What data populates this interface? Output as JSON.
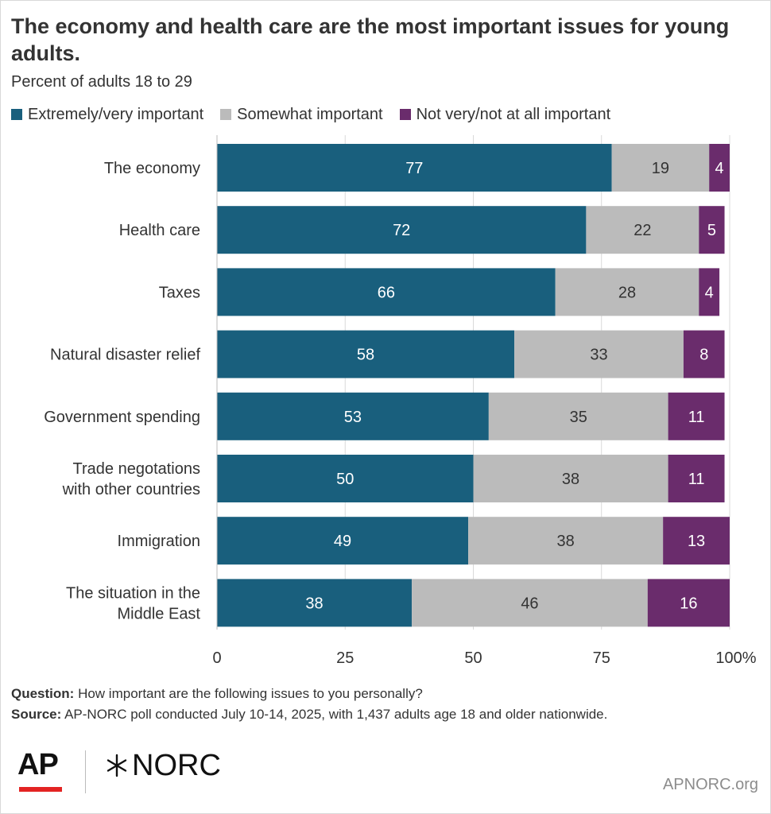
{
  "title": "The economy and health care are the most important issues for young adults.",
  "subtitle": "Percent of adults 18 to 29",
  "colors": {
    "extremely": "#195f7d",
    "somewhat": "#bbbbbb",
    "not": "#6a2c6c"
  },
  "legend": [
    {
      "label": "Extremely/very important",
      "color": "#195f7d"
    },
    {
      "label": "Somewhat important",
      "color": "#bbbbbb"
    },
    {
      "label": "Not very/not at all important",
      "color": "#6a2c6c"
    }
  ],
  "chart_data": {
    "type": "bar",
    "orientation": "horizontal",
    "stacked": true,
    "categories": [
      "The economy",
      "Health care",
      "Taxes",
      "Natural disaster relief",
      "Government spending",
      "Trade negotations with other countries",
      "Immigration",
      "The situation in the Middle East"
    ],
    "category_lines": [
      [
        "The economy"
      ],
      [
        "Health care"
      ],
      [
        "Taxes"
      ],
      [
        "Natural disaster relief"
      ],
      [
        "Government spending"
      ],
      [
        "Trade negotations",
        "with other countries"
      ],
      [
        "Immigration"
      ],
      [
        "The situation in the",
        "Middle East"
      ]
    ],
    "series": [
      {
        "name": "Extremely/very important",
        "values": [
          77,
          72,
          66,
          58,
          53,
          50,
          49,
          38
        ]
      },
      {
        "name": "Somewhat important",
        "values": [
          19,
          22,
          28,
          33,
          35,
          38,
          38,
          46
        ]
      },
      {
        "name": "Not very/not at all important",
        "values": [
          4,
          5,
          4,
          8,
          11,
          11,
          13,
          16
        ]
      }
    ],
    "xlim": [
      0,
      100
    ],
    "xticks": [
      0,
      25,
      50,
      75,
      100
    ],
    "xtick_labels": [
      "0",
      "25",
      "50",
      "75",
      "100%"
    ],
    "grid": true,
    "legend_position": "top"
  },
  "footer": {
    "question_label": "Question:",
    "question_text": "How important are the following issues to you personally?",
    "source_label": "Source:",
    "source_text": "AP-NORC poll conducted July 10-14, 2025, with 1,437 adults age 18 and older nationwide."
  },
  "logos": {
    "ap": "AP",
    "norc": "NORC",
    "site": "APNORC.org"
  }
}
